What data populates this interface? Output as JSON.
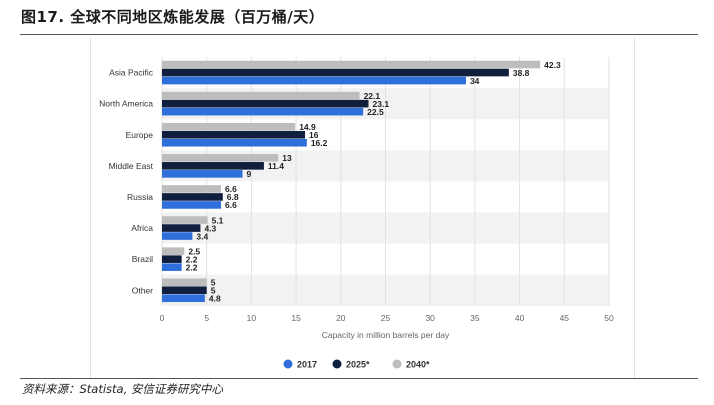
{
  "figure": {
    "title": "图17. 全球不同地区炼能发展（百万桶/天）",
    "source": "资料来源：Statista, 安信证券研究中心"
  },
  "colors": {
    "s2017": "#2f6fdb",
    "s2025": "#0f1f3d",
    "s2040": "#bdbdbd",
    "band": "#f2f2f2",
    "grid": "#e2e2e2",
    "axis_text": "#666666",
    "label_text": "#333333"
  },
  "chart_data": {
    "type": "bar",
    "orientation": "horizontal",
    "title": "",
    "xlabel": "Capacity in million barrels per day",
    "ylabel": "",
    "xlim": [
      0,
      50
    ],
    "xticks": [
      0,
      5,
      10,
      15,
      20,
      25,
      30,
      35,
      40,
      45,
      50
    ],
    "grid": true,
    "legend_position": "bottom-center",
    "categories": [
      "Asia Pacific",
      "North America",
      "Europe",
      "Middle East",
      "Russia",
      "Africa",
      "Brazil",
      "Other"
    ],
    "series": [
      {
        "name": "2040*",
        "color_key": "s2040",
        "values": [
          42.3,
          22.1,
          14.9,
          13,
          6.6,
          5.1,
          2.5,
          5
        ]
      },
      {
        "name": "2025*",
        "color_key": "s2025",
        "values": [
          38.8,
          23.1,
          16,
          11.4,
          6.8,
          4.3,
          2.2,
          5
        ]
      },
      {
        "name": "2017",
        "color_key": "s2017",
        "values": [
          34,
          22.5,
          16.2,
          9,
          6.6,
          3.4,
          2.2,
          4.8
        ]
      }
    ],
    "legend_order": [
      "2017",
      "2025*",
      "2040*"
    ]
  }
}
